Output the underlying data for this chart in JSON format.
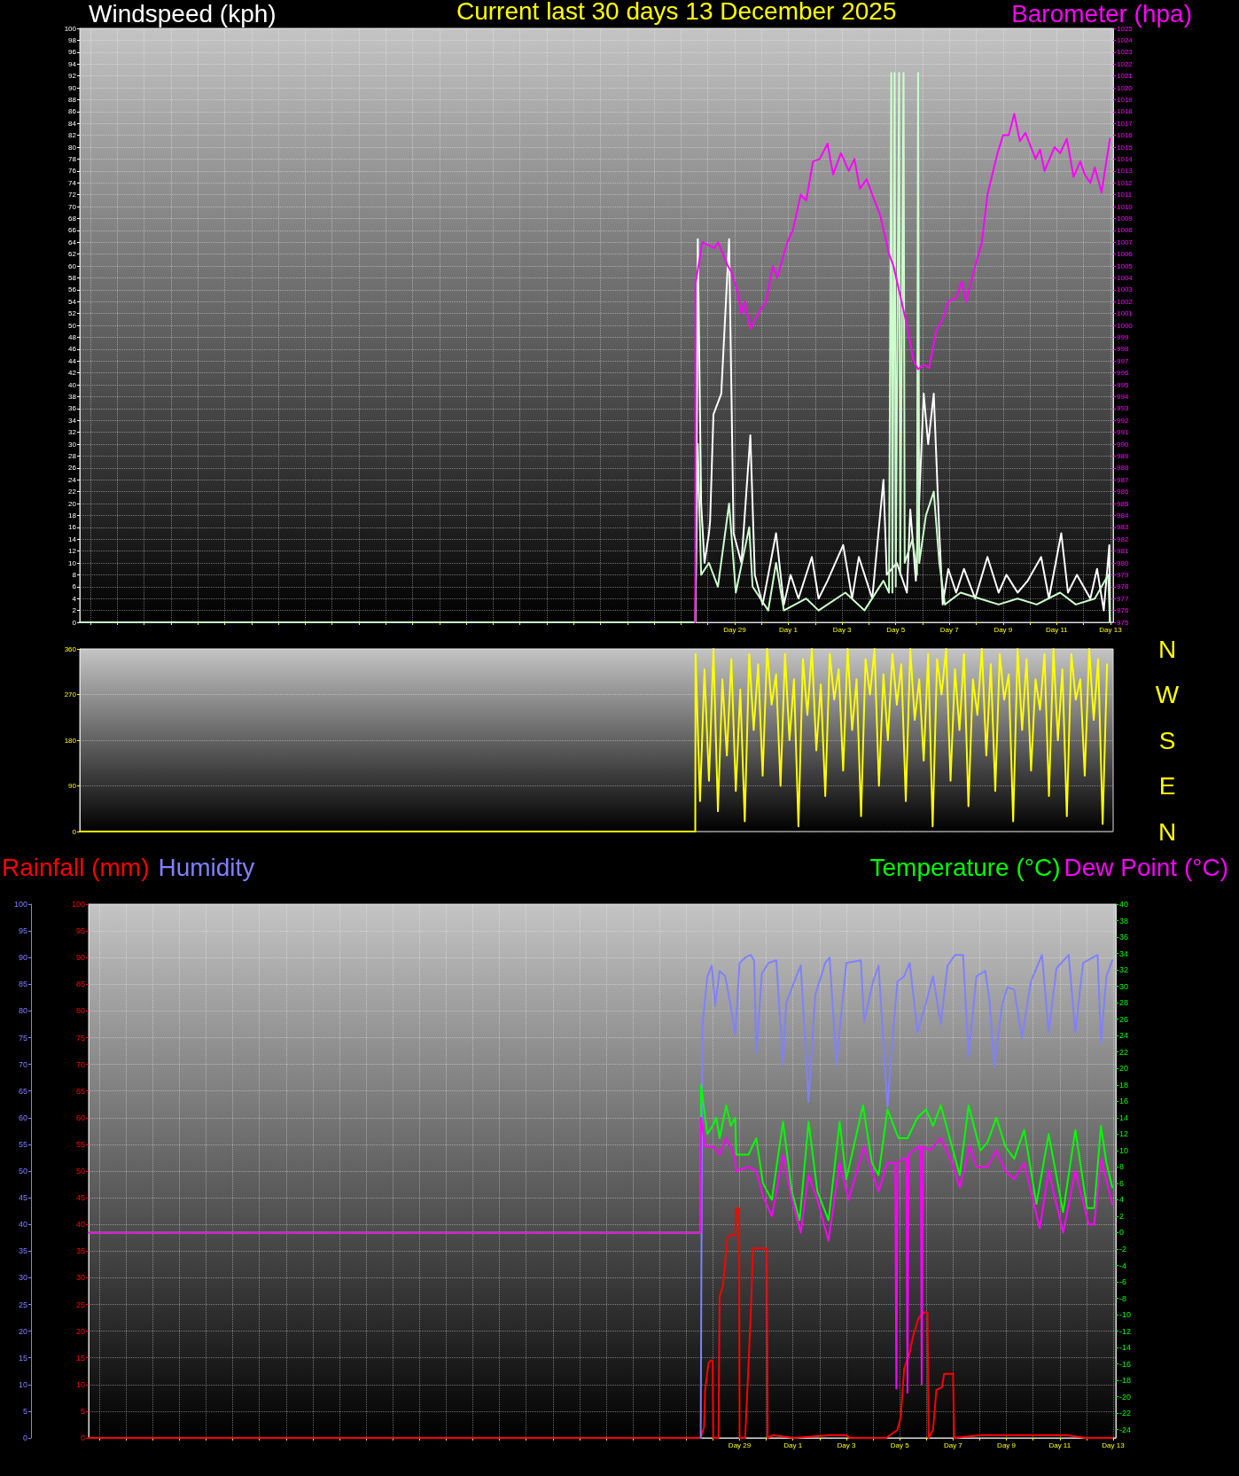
{
  "chart_data": [
    {
      "type": "line",
      "title": "Current last 30 days 13 December 2025",
      "ylabel": "Windspeed (kph)",
      "y2label": "Barometer (hpa)",
      "xlim": [
        "2025-11-04T14:24",
        "2025-12-13T02:24"
      ],
      "xticks": [
        {
          "value": "2025-11-05",
          "label": null
        },
        {
          "value": "2025-11-06",
          "label": null
        },
        {
          "value": "2025-11-07",
          "label": null
        },
        {
          "value": "2025-11-08",
          "label": null
        },
        {
          "value": "2025-11-09",
          "label": null
        },
        {
          "value": "2025-11-10",
          "label": null
        },
        {
          "value": "2025-11-11",
          "label": null
        },
        {
          "value": "2025-11-12",
          "label": null
        },
        {
          "value": "2025-11-13",
          "label": null
        },
        {
          "value": "2025-11-14",
          "label": null
        },
        {
          "value": "2025-11-15",
          "label": null
        },
        {
          "value": "2025-11-16",
          "label": null
        },
        {
          "value": "2025-11-17",
          "label": null
        },
        {
          "value": "2025-11-18",
          "label": null
        },
        {
          "value": "2025-11-19",
          "label": null
        },
        {
          "value": "2025-11-20",
          "label": null
        },
        {
          "value": "2025-11-21",
          "label": null
        },
        {
          "value": "2025-11-22",
          "label": null
        },
        {
          "value": "2025-11-23",
          "label": null
        },
        {
          "value": "2025-11-24",
          "label": null
        },
        {
          "value": "2025-11-25",
          "label": null
        },
        {
          "value": "2025-11-26",
          "label": null
        },
        {
          "value": "2025-11-27",
          "label": null
        },
        {
          "value": "2025-11-28",
          "label": null
        },
        {
          "value": "2025-11-29",
          "label": "Day 29"
        },
        {
          "value": "2025-11-30",
          "label": null
        },
        {
          "value": "2025-12-01",
          "label": "Day 1"
        },
        {
          "value": "2025-12-02",
          "label": null
        },
        {
          "value": "2025-12-03",
          "label": "Day 3"
        },
        {
          "value": "2025-12-04",
          "label": null
        },
        {
          "value": "2025-12-05",
          "label": "Day 5"
        },
        {
          "value": "2025-12-06",
          "label": null
        },
        {
          "value": "2025-12-07",
          "label": "Day 7"
        },
        {
          "value": "2025-12-08",
          "label": null
        },
        {
          "value": "2025-12-09",
          "label": "Day 9"
        },
        {
          "value": "2025-12-10",
          "label": null
        },
        {
          "value": "2025-12-11",
          "label": "Day 11"
        },
        {
          "value": "2025-12-12",
          "label": null
        },
        {
          "value": "2025-12-13",
          "label": "Day 13"
        }
      ],
      "ylim": [
        0,
        100
      ],
      "yticks": [
        0,
        2,
        4,
        6,
        8,
        10,
        12,
        14,
        16,
        18,
        20,
        22,
        24,
        26,
        28,
        30,
        32,
        34,
        36,
        38,
        40,
        42,
        44,
        46,
        48,
        50,
        52,
        54,
        56,
        58,
        60,
        62,
        64,
        66,
        68,
        70,
        72,
        74,
        76,
        78,
        80,
        82,
        84,
        86,
        88,
        90,
        92,
        94,
        96,
        98,
        100
      ],
      "y2lim": [
        975,
        1025
      ],
      "y2ticks": [
        975,
        976,
        977,
        978,
        979,
        980,
        981,
        982,
        983,
        984,
        985,
        986,
        987,
        988,
        989,
        990,
        991,
        992,
        993,
        994,
        995,
        996,
        997,
        998,
        999,
        1000,
        1001,
        1002,
        1003,
        1004,
        1005,
        1006,
        1007,
        1008,
        1009,
        1010,
        1011,
        1012,
        1013,
        1014,
        1015,
        1016,
        1017,
        1018,
        1019,
        1020,
        1021,
        1022,
        1023,
        1024,
        1025
      ],
      "grid": true,
      "marker": "none",
      "series": [
        {
          "color": "#ffffff",
          "x": [
            "2025-11-27T13:00",
            "2025-11-27T15:00",
            "2025-11-27T18:00",
            "2025-11-27T21:00",
            "2025-11-28T01:00",
            "2025-11-28T02:00",
            "2025-11-28T05:00",
            "2025-11-28T12:00",
            "2025-11-28T19:00",
            "2025-11-28T23:00",
            "2025-11-29T06:00",
            "2025-11-29T14:00",
            "2025-11-29T18:00",
            "2025-11-30T01:00",
            "2025-11-30T13:00",
            "2025-11-30T20:00",
            "2025-12-01T02:00",
            "2025-12-01T09:00",
            "2025-12-01T21:00",
            "2025-12-02T03:00",
            "2025-12-02T11:00",
            "2025-12-03T01:00",
            "2025-12-03T09:00",
            "2025-12-03T15:00",
            "2025-12-04T03:00",
            "2025-12-04T13:00",
            "2025-12-04T16:00",
            "2025-12-05T01:00",
            "2025-12-05T10:00",
            "2025-12-05T13:00",
            "2025-12-05T18:00",
            "2025-12-06T01:00",
            "2025-12-06T05:00",
            "2025-12-06T10:00",
            "2025-12-06T15:00",
            "2025-12-06T18:00",
            "2025-12-06T23:00",
            "2025-12-07T06:00",
            "2025-12-07T13:00",
            "2025-12-07T23:00",
            "2025-12-08T10:00",
            "2025-12-08T20:00",
            "2025-12-09T03:00",
            "2025-12-09T13:00",
            "2025-12-09T22:00",
            "2025-12-10T10:00",
            "2025-12-10T17:00",
            "2025-12-11T04:00",
            "2025-12-11T10:00",
            "2025-12-11T18:00",
            "2025-12-12T06:00",
            "2025-12-12T12:00",
            "2025-12-12T18:00",
            "2025-12-12T23:00",
            "2025-12-12T23:30"
          ],
          "values": [
            0,
            64.5,
            20,
            10,
            15,
            17,
            35,
            38.5,
            64.5,
            15,
            10,
            31.5,
            8,
            3,
            15,
            3,
            8,
            4,
            11,
            4,
            7,
            13,
            4,
            11,
            4,
            24,
            8,
            10,
            5,
            19,
            7,
            38.5,
            30,
            38.5,
            15,
            3,
            9,
            5,
            9,
            4,
            11,
            5,
            8,
            5,
            7,
            11,
            4,
            15,
            5,
            8,
            4,
            9,
            2,
            13,
            0
          ]
        },
        {
          "color": "#ccffcc",
          "x": [
            "2025-11-04T14:24",
            "2025-11-27T12:45",
            "2025-11-27T13:00",
            "2025-11-27T15:00",
            "2025-11-27T18:00",
            "2025-11-28T01:00",
            "2025-11-28T09:00",
            "2025-11-28T19:00",
            "2025-11-29T01:00",
            "2025-11-29T13:00",
            "2025-11-29T16:00",
            "2025-11-30T06:00",
            "2025-11-30T13:00",
            "2025-11-30T20:00",
            "2025-12-01T16:00",
            "2025-12-02T03:00",
            "2025-12-03T03:00",
            "2025-12-03T20:00",
            "2025-12-04T13:00",
            "2025-12-04T18:00",
            "2025-12-04T20:00",
            "2025-12-04T21:00",
            "2025-12-04T23:00",
            "2025-12-05T00:00",
            "2025-12-05T03:00",
            "2025-12-05T04:00",
            "2025-12-05T07:00",
            "2025-12-05T08:00",
            "2025-12-05T15:00",
            "2025-12-05T19:00",
            "2025-12-05T20:00",
            "2025-12-05T21:00",
            "2025-12-06T03:00",
            "2025-12-06T10:00",
            "2025-12-06T15:00",
            "2025-12-06T20:00",
            "2025-12-07T10:00",
            "2025-12-08T03:00",
            "2025-12-08T20:00",
            "2025-12-09T13:00",
            "2025-12-10T06:00",
            "2025-12-11T03:00",
            "2025-12-11T17:00",
            "2025-12-12T10:00",
            "2025-12-12T22:00",
            "2025-12-12T23:30"
          ],
          "values": [
            0,
            0,
            0,
            30,
            8,
            10,
            6,
            20,
            5,
            16,
            6,
            2,
            10,
            2,
            4,
            2,
            5,
            2,
            7,
            5,
            92.5,
            5,
            92.5,
            6,
            92.5,
            8,
            92.5,
            10,
            14,
            8,
            92.5,
            10,
            18,
            22,
            10,
            3,
            5,
            4,
            3,
            4,
            3,
            5,
            3,
            4,
            8,
            0
          ]
        },
        {
          "color": "#ff00ff",
          "axis": "y2",
          "x": [
            "2025-11-27T12:45",
            "2025-11-27T13:00",
            "2025-11-27T19:00",
            "2025-11-28T06:00",
            "2025-11-28T09:00",
            "2025-11-28T18:00",
            "2025-11-28T21:00",
            "2025-11-29T02:00",
            "2025-11-29T06:00",
            "2025-11-29T09:00",
            "2025-11-29T14:00",
            "2025-11-29T21:00",
            "2025-11-30T04:00",
            "2025-11-30T10:00",
            "2025-11-30T14:00",
            "2025-11-30T23:00",
            "2025-12-01T04:00",
            "2025-12-01T11:00",
            "2025-12-01T16:00",
            "2025-12-01T22:00",
            "2025-12-02T04:00",
            "2025-12-02T11:00",
            "2025-12-02T16:00",
            "2025-12-02T23:00",
            "2025-12-03T06:00",
            "2025-12-03T11:00",
            "2025-12-03T16:00",
            "2025-12-03T22:00",
            "2025-12-04T03:00",
            "2025-12-04T10:00",
            "2025-12-04T18:00",
            "2025-12-04T22:00",
            "2025-12-05T04:00",
            "2025-12-05T10:00",
            "2025-12-05T16:00",
            "2025-12-05T20:00",
            "2025-12-06T01:00",
            "2025-12-06T06:00",
            "2025-12-06T12:00",
            "2025-12-06T18:00",
            "2025-12-06T23:00",
            "2025-12-07T06:00",
            "2025-12-07T11:00",
            "2025-12-07T15:00",
            "2025-12-07T23:00",
            "2025-12-08T05:00",
            "2025-12-08T10:00",
            "2025-12-08T19:00",
            "2025-12-09T00:00",
            "2025-12-09T05:00",
            "2025-12-09T10:00",
            "2025-12-09T15:00",
            "2025-12-09T20:00",
            "2025-12-10T05:00",
            "2025-12-10T09:00",
            "2025-12-10T13:00",
            "2025-12-10T22:00",
            "2025-12-11T03:00",
            "2025-12-11T09:00",
            "2025-12-11T15:00",
            "2025-12-11T21:00",
            "2025-12-12T01:00",
            "2025-12-12T06:00",
            "2025-12-12T10:00",
            "2025-12-12T16:00",
            "2025-12-12T19:00",
            "2025-12-12T23:30"
          ],
          "values": [
            975,
            1003.5,
            1007,
            1006.5,
            1007,
            1005,
            1004.5,
            1003,
            1001,
            1002,
            999.7,
            1001,
            1002,
            1005,
            1004,
            1007,
            1008,
            1011,
            1010.5,
            1013.8,
            1014,
            1015.3,
            1012.7,
            1014.5,
            1013,
            1014,
            1011.5,
            1012.3,
            1011,
            1009.3,
            1006,
            1005,
            1002.5,
            1000,
            997,
            996.3,
            996.7,
            996.4,
            999.5,
            1000.5,
            1002,
            1002.3,
            1003.7,
            1002,
            1005,
            1007,
            1011,
            1014.5,
            1016,
            1016,
            1017.8,
            1015.5,
            1016.2,
            1014,
            1014.8,
            1013,
            1015,
            1014.5,
            1015.7,
            1012.5,
            1013.8,
            1012.7,
            1012,
            1013.3,
            1011.2,
            1013,
            1015.7
          ]
        }
      ]
    },
    {
      "type": "line",
      "xlim": [
        "2025-11-04T14:24",
        "2025-12-13T02:24"
      ],
      "ylim": [
        0,
        360
      ],
      "yticks": [
        0,
        90,
        180,
        270,
        360
      ],
      "annotations": [
        "N",
        "W",
        "S",
        "E",
        "N"
      ],
      "grid": "y",
      "tick_labels": "y",
      "marker": "none",
      "series": [
        {
          "color": "#ffff00",
          "x": [
            "2025-11-04T14:24",
            "2025-11-27T12:45",
            "2025-11-27T13:00",
            "2025-11-27T17:00",
            "2025-11-27T21:00",
            "2025-11-28T01:00",
            "2025-11-28T05:00",
            "2025-11-28T09:00",
            "2025-11-28T13:00",
            "2025-11-28T17:00",
            "2025-11-28T21:00",
            "2025-11-29T01:00",
            "2025-11-29T05:00",
            "2025-11-29T09:00",
            "2025-11-29T13:00",
            "2025-11-29T17:00",
            "2025-11-29T21:00",
            "2025-11-30T01:00",
            "2025-11-30T05:00",
            "2025-11-30T09:00",
            "2025-11-30T13:00",
            "2025-11-30T17:00",
            "2025-11-30T21:00",
            "2025-12-01T01:00",
            "2025-12-01T05:00",
            "2025-12-01T09:00",
            "2025-12-01T13:00",
            "2025-12-01T17:00",
            "2025-12-01T21:00",
            "2025-12-02T01:00",
            "2025-12-02T05:00",
            "2025-12-02T09:00",
            "2025-12-02T13:00",
            "2025-12-02T17:00",
            "2025-12-02T21:00",
            "2025-12-03T01:00",
            "2025-12-03T05:00",
            "2025-12-03T09:00",
            "2025-12-03T13:00",
            "2025-12-03T17:00",
            "2025-12-03T21:00",
            "2025-12-04T01:00",
            "2025-12-04T05:00",
            "2025-12-04T09:00",
            "2025-12-04T13:00",
            "2025-12-04T17:00",
            "2025-12-04T21:00",
            "2025-12-05T01:00",
            "2025-12-05T05:00",
            "2025-12-05T09:00",
            "2025-12-05T13:00",
            "2025-12-05T17:00",
            "2025-12-05T21:00",
            "2025-12-06T01:00",
            "2025-12-06T05:00",
            "2025-12-06T09:00",
            "2025-12-06T13:00",
            "2025-12-06T17:00",
            "2025-12-06T21:00",
            "2025-12-07T01:00",
            "2025-12-07T05:00",
            "2025-12-07T09:00",
            "2025-12-07T13:00",
            "2025-12-07T17:00",
            "2025-12-07T21:00",
            "2025-12-08T01:00",
            "2025-12-08T05:00",
            "2025-12-08T09:00",
            "2025-12-08T13:00",
            "2025-12-08T17:00",
            "2025-12-08T21:00",
            "2025-12-09T01:00",
            "2025-12-09T05:00",
            "2025-12-09T09:00",
            "2025-12-09T13:00",
            "2025-12-09T17:00",
            "2025-12-09T21:00",
            "2025-12-10T01:00",
            "2025-12-10T05:00",
            "2025-12-10T09:00",
            "2025-12-10T13:00",
            "2025-12-10T17:00",
            "2025-12-10T21:00",
            "2025-12-11T01:00",
            "2025-12-11T05:00",
            "2025-12-11T09:00",
            "2025-12-11T13:00",
            "2025-12-11T17:00",
            "2025-12-11T21:00",
            "2025-12-12T01:00",
            "2025-12-12T05:00",
            "2025-12-12T09:00",
            "2025-12-12T13:00",
            "2025-12-12T17:00",
            "2025-12-12T21:00"
          ],
          "values": [
            0,
            0,
            350,
            60,
            320,
            100,
            360,
            40,
            300,
            150,
            340,
            80,
            280,
            20,
            350,
            200,
            330,
            110,
            360,
            250,
            310,
            90,
            350,
            180,
            300,
            10,
            340,
            230,
            360,
            160,
            290,
            70,
            350,
            260,
            320,
            120,
            360,
            200,
            300,
            30,
            340,
            270,
            360,
            90,
            310,
            180,
            350,
            250,
            330,
            60,
            360,
            220,
            300,
            140,
            350,
            10,
            340,
            270,
            360,
            100,
            320,
            200,
            350,
            50,
            300,
            230,
            360,
            150,
            330,
            80,
            350,
            260,
            310,
            20,
            360,
            200,
            340,
            120,
            300,
            240,
            350,
            70,
            360,
            180,
            320,
            30,
            350,
            260,
            300,
            110,
            360,
            220,
            340,
            15,
            330
          ]
        }
      ]
    },
    {
      "type": "line",
      "xlim": [
        "2025-11-04T14:24",
        "2025-12-13T02:24"
      ],
      "xticks": [
        {
          "value": "2025-11-05",
          "label": null
        },
        {
          "value": "2025-11-06",
          "label": null
        },
        {
          "value": "2025-11-07",
          "label": null
        },
        {
          "value": "2025-11-08",
          "label": null
        },
        {
          "value": "2025-11-09",
          "label": null
        },
        {
          "value": "2025-11-10",
          "label": null
        },
        {
          "value": "2025-11-11",
          "label": null
        },
        {
          "value": "2025-11-12",
          "label": null
        },
        {
          "value": "2025-11-13",
          "label": null
        },
        {
          "value": "2025-11-14",
          "label": null
        },
        {
          "value": "2025-11-15",
          "label": null
        },
        {
          "value": "2025-11-16",
          "label": null
        },
        {
          "value": "2025-11-17",
          "label": null
        },
        {
          "value": "2025-11-18",
          "label": null
        },
        {
          "value": "2025-11-19",
          "label": null
        },
        {
          "value": "2025-11-20",
          "label": null
        },
        {
          "value": "2025-11-21",
          "label": null
        },
        {
          "value": "2025-11-22",
          "label": null
        },
        {
          "value": "2025-11-23",
          "label": null
        },
        {
          "value": "2025-11-24",
          "label": null
        },
        {
          "value": "2025-11-25",
          "label": null
        },
        {
          "value": "2025-11-26",
          "label": null
        },
        {
          "value": "2025-11-27",
          "label": null
        },
        {
          "value": "2025-11-28",
          "label": null
        },
        {
          "value": "2025-11-29",
          "label": "Day 29"
        },
        {
          "value": "2025-11-30",
          "label": null
        },
        {
          "value": "2025-12-01",
          "label": "Day 1"
        },
        {
          "value": "2025-12-02",
          "label": null
        },
        {
          "value": "2025-12-03",
          "label": "Day 3"
        },
        {
          "value": "2025-12-04",
          "label": null
        },
        {
          "value": "2025-12-05",
          "label": "Day 5"
        },
        {
          "value": "2025-12-06",
          "label": null
        },
        {
          "value": "2025-12-07",
          "label": "Day 7"
        },
        {
          "value": "2025-12-08",
          "label": null
        },
        {
          "value": "2025-12-09",
          "label": "Day 9"
        },
        {
          "value": "2025-12-10",
          "label": null
        },
        {
          "value": "2025-12-11",
          "label": "Day 11"
        },
        {
          "value": "2025-12-12",
          "label": null
        },
        {
          "value": "2025-12-13",
          "label": "Day 13"
        }
      ],
      "ylim": [
        0,
        100
      ],
      "yticks": [
        0,
        5,
        10,
        15,
        20,
        25,
        30,
        35,
        40,
        45,
        50,
        55,
        60,
        65,
        70,
        75,
        80,
        85,
        90,
        95,
        100
      ],
      "y2lim": [
        0,
        100
      ],
      "y2ticks": [
        0,
        5,
        10,
        15,
        20,
        25,
        30,
        35,
        40,
        45,
        50,
        55,
        60,
        65,
        70,
        75,
        80,
        85,
        90,
        95,
        100
      ],
      "y3lim": [
        -25,
        40
      ],
      "y3ticks": [
        -24,
        -22,
        -20,
        -18,
        -16,
        -14,
        -12,
        -10,
        -8,
        -6,
        -4,
        -2,
        0,
        2,
        4,
        6,
        8,
        10,
        12,
        14,
        16,
        18,
        20,
        22,
        24,
        26,
        28,
        30,
        32,
        34,
        36,
        38,
        40
      ],
      "grid": true,
      "legend": "top",
      "marker": "none",
      "series": [
        {
          "name": "Rainfall (mm)",
          "color": "#ff0000",
          "x": [
            "2025-11-04T14:24",
            "2025-11-27T13:00",
            "2025-11-27T16:00",
            "2025-11-27T17:00",
            "2025-11-27T20:00",
            "2025-11-27T22:00",
            "2025-11-27T23:45",
            "2025-11-28T00:15",
            "2025-11-28T05:00",
            "2025-11-28T06:00",
            "2025-11-28T09:00",
            "2025-11-28T13:00",
            "2025-11-28T16:00",
            "2025-11-28T20:00",
            "2025-11-28T21:00",
            "2025-11-28T23:30",
            "2025-11-29T00:00",
            "2025-11-29T05:00",
            "2025-11-29T10:00",
            "2025-11-29T12:00",
            "2025-11-30T00:30",
            "2025-11-30T01:15",
            "2025-11-30T06:00",
            "2025-12-01T01:00",
            "2025-12-02T08:00",
            "2025-12-03T00:00",
            "2025-12-03T03:00",
            "2025-12-04T12:00",
            "2025-12-04T22:00",
            "2025-12-05T01:00",
            "2025-12-05T04:00",
            "2025-12-05T09:00",
            "2025-12-05T12:00",
            "2025-12-05T17:00",
            "2025-12-05T22:00",
            "2025-12-06T01:00",
            "2025-12-06T02:00",
            "2025-12-06T06:00",
            "2025-12-06T09:00",
            "2025-12-06T14:00",
            "2025-12-06T16:00",
            "2025-12-07T00:00",
            "2025-12-07T01:00",
            "2025-12-08T00:30",
            "2025-12-11T07:00",
            "2025-12-11T23:00",
            "2025-12-12T23:15"
          ],
          "values": [
            0,
            0,
            2,
            9,
            14,
            14.5,
            14.5,
            0,
            0,
            26.5,
            28.5,
            37.5,
            38,
            38,
            43,
            43,
            0,
            0,
            23,
            35.5,
            35.5,
            0,
            0.5,
            0,
            0.5,
            0.5,
            0,
            0,
            1.5,
            4,
            13,
            16,
            19,
            22.5,
            23.5,
            23.5,
            0,
            1.5,
            9,
            9.5,
            12,
            12,
            0,
            0.5,
            0.5,
            0,
            0
          ]
        },
        {
          "name": "Humidity",
          "color": "#8080ff",
          "axis": "y2",
          "x": [
            "2025-11-27T13:00",
            "2025-11-27T14:30",
            "2025-11-27T19:00",
            "2025-11-27T23:00",
            "2025-11-28T02:00",
            "2025-11-28T06:00",
            "2025-11-28T11:00",
            "2025-11-28T16:00",
            "2025-11-28T20:00",
            "2025-11-29T00:00",
            "2025-11-29T05:00",
            "2025-11-29T10:00",
            "2025-11-29T13:00",
            "2025-11-29T15:00",
            "2025-11-29T20:00",
            "2025-11-30T02:00",
            "2025-11-30T09:00",
            "2025-11-30T15:00",
            "2025-11-30T18:00",
            "2025-12-01T03:00",
            "2025-12-01T07:00",
            "2025-12-01T14:00",
            "2025-12-01T20:00",
            "2025-12-02T05:00",
            "2025-12-02T09:00",
            "2025-12-02T15:00",
            "2025-12-03T00:00",
            "2025-12-03T13:00",
            "2025-12-03T16:00",
            "2025-12-04T00:00",
            "2025-12-04T05:00",
            "2025-12-04T13:00",
            "2025-12-04T18:00",
            "2025-12-04T22:00",
            "2025-12-05T04:00",
            "2025-12-05T09:00",
            "2025-12-05T16:00",
            "2025-12-05T23:45",
            "2025-12-06T06:00",
            "2025-12-06T13:00",
            "2025-12-06T19:00",
            "2025-12-07T02:00",
            "2025-12-07T09:00",
            "2025-12-07T14:00",
            "2025-12-07T21:00",
            "2025-12-08T05:00",
            "2025-12-08T09:00",
            "2025-12-08T13:00",
            "2025-12-08T20:00",
            "2025-12-09T01:00",
            "2025-12-09T07:00",
            "2025-12-09T14:00",
            "2025-12-09T22:00",
            "2025-12-10T08:00",
            "2025-12-10T14:00",
            "2025-12-10T21:00",
            "2025-12-11T08:00",
            "2025-12-11T14:00",
            "2025-12-11T21:00",
            "2025-12-12T10:00",
            "2025-12-12T13:00",
            "2025-12-12T18:00",
            "2025-12-12T23:15"
          ],
          "values": [
            0,
            77,
            86.5,
            88.5,
            81,
            87.5,
            86.5,
            81,
            75.5,
            89,
            90,
            90.5,
            89.5,
            72,
            87,
            89,
            89.5,
            70,
            81.5,
            86.5,
            88.5,
            63,
            83,
            89,
            90,
            70,
            89,
            89.5,
            78,
            85.5,
            88.5,
            62,
            76,
            85.5,
            86.5,
            89,
            76,
            81.5,
            86.5,
            77.5,
            88.5,
            90.5,
            90.5,
            71.5,
            86.5,
            87.5,
            81.5,
            69.5,
            81,
            84.5,
            84,
            75,
            85.5,
            90.5,
            76,
            88,
            90.5,
            76,
            89,
            90.5,
            74,
            86.5,
            89.5
          ]
        },
        {
          "name": "Temperature (°C)",
          "color": "#00ff00",
          "axis": "y3",
          "x": [
            "2025-11-04T14:24",
            "2025-11-27T13:00",
            "2025-11-27T13:15",
            "2025-11-27T19:00",
            "2025-11-27T23:45",
            "2025-11-28T03:00",
            "2025-11-28T06:00",
            "2025-11-28T12:00",
            "2025-11-28T16:00",
            "2025-11-28T20:00",
            "2025-11-28T21:00",
            "2025-11-29T08:00",
            "2025-11-29T15:00",
            "2025-11-29T21:00",
            "2025-11-30T05:00",
            "2025-11-30T15:00",
            "2025-11-30T23:00",
            "2025-12-01T06:00",
            "2025-12-01T14:00",
            "2025-12-01T22:00",
            "2025-12-02T08:00",
            "2025-12-02T18:00",
            "2025-12-03T00:00",
            "2025-12-03T15:00",
            "2025-12-03T23:00",
            "2025-12-04T05:00",
            "2025-12-04T13:00",
            "2025-12-04T23:00",
            "2025-12-05T07:00",
            "2025-12-05T16:00",
            "2025-12-05T23:45",
            "2025-12-06T06:00",
            "2025-12-06T13:00",
            "2025-12-06T23:00",
            "2025-12-07T06:00",
            "2025-12-07T14:00",
            "2025-12-08T00:30",
            "2025-12-08T07:00",
            "2025-12-08T15:00",
            "2025-12-08T23:00",
            "2025-12-09T07:00",
            "2025-12-09T16:00",
            "2025-12-10T03:00",
            "2025-12-10T14:00",
            "2025-12-11T03:00",
            "2025-12-11T14:00",
            "2025-12-12T00:30",
            "2025-12-12T07:00",
            "2025-12-12T13:00",
            "2025-12-12T18:00",
            "2025-12-12T23:15"
          ],
          "values": [
            0,
            0,
            18,
            12,
            13,
            14,
            11.5,
            15.5,
            13,
            14,
            9.5,
            9.5,
            11.5,
            6,
            4,
            13.5,
            5,
            1.5,
            13.5,
            5,
            1.5,
            13.5,
            6.5,
            15.5,
            8.5,
            7,
            15,
            11.5,
            11.5,
            14,
            15,
            13,
            15.5,
            10.5,
            7,
            15.5,
            10,
            11,
            14,
            10.5,
            9,
            12.5,
            3.5,
            12,
            2.5,
            12.5,
            3,
            3,
            13,
            8.5,
            5.5
          ]
        },
        {
          "name": "Dew Point (°C)",
          "color": "#ff00ff",
          "axis": "y3",
          "x": [
            "2025-11-04T14:24",
            "2025-11-27T13:00",
            "2025-11-27T13:15",
            "2025-11-27T17:00",
            "2025-11-27T23:45",
            "2025-11-28T06:00",
            "2025-11-28T12:00",
            "2025-11-28T19:00",
            "2025-11-28T21:00",
            "2025-11-29T08:00",
            "2025-11-29T15:00",
            "2025-11-29T21:00",
            "2025-11-30T05:00",
            "2025-11-30T15:00",
            "2025-11-30T23:00",
            "2025-12-01T07:00",
            "2025-12-01T14:00",
            "2025-12-01T22:00",
            "2025-12-02T08:00",
            "2025-12-02T18:00",
            "2025-12-03T02:00",
            "2025-12-03T16:00",
            "2025-12-04T05:00",
            "2025-12-04T13:00",
            "2025-12-04T20:00",
            "2025-12-04T21:00",
            "2025-12-04T22:00",
            "2025-12-05T03:00",
            "2025-12-05T06:00",
            "2025-12-05T07:00",
            "2025-12-05T08:00",
            "2025-12-05T17:00",
            "2025-12-05T19:00",
            "2025-12-05T19:45",
            "2025-12-05T21:00",
            "2025-12-06T03:00",
            "2025-12-06T13:00",
            "2025-12-06T23:00",
            "2025-12-07T06:00",
            "2025-12-07T15:00",
            "2025-12-07T21:00",
            "2025-12-08T07:00",
            "2025-12-08T15:00",
            "2025-12-08T23:00",
            "2025-12-09T07:00",
            "2025-12-09T16:00",
            "2025-12-10T06:00",
            "2025-12-10T14:00",
            "2025-12-11T03:00",
            "2025-12-11T14:00",
            "2025-12-12T02:00",
            "2025-12-12T07:00",
            "2025-12-12T13:00",
            "2025-12-12T23:15"
          ],
          "values": [
            0,
            0,
            14,
            10.5,
            10.5,
            9.5,
            11.5,
            9.5,
            7.5,
            8,
            7.5,
            4.5,
            2,
            9.5,
            4,
            0,
            7,
            4,
            -1,
            8.5,
            4,
            10.5,
            5,
            8.5,
            8.5,
            -19,
            8.5,
            9,
            9,
            -19.5,
            9.5,
            10.5,
            10.5,
            -18.5,
            10.5,
            10,
            11.5,
            8.5,
            5.5,
            10.5,
            8,
            8,
            10,
            7.5,
            6.5,
            8.5,
            0.5,
            7.5,
            0,
            7.5,
            1,
            1,
            9,
            3.5
          ]
        }
      ]
    }
  ]
}
